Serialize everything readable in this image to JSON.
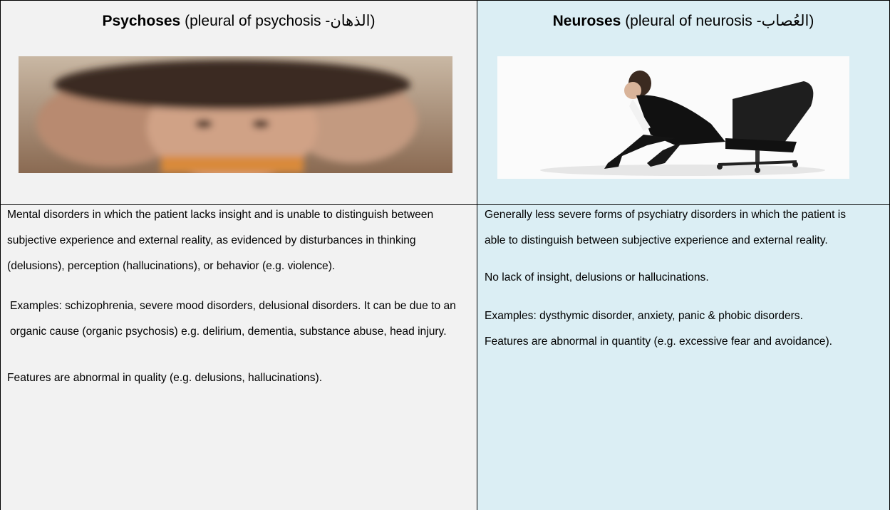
{
  "columns": [
    {
      "title": "Psychoses",
      "subtitle": "(pleural of psychosis -الذهان)",
      "paragraphs": [
        "Mental disorders in which the patient lacks insight and is unable to distinguish between subjective experience and external reality, as evidenced by disturbances in thinking (delusions), perception (hallucinations), or behavior (e.g. violence).",
        "Examples: schizophrenia, severe mood disorders,  delusional disorders. It can be due to an organic cause (organic psychosis) e.g. delirium, dementia, substance abuse, head injury.",
        "Features are abnormal in quality (e.g. delusions, hallucinations)."
      ]
    },
    {
      "title": "Neuroses",
      "subtitle": "(pleural of neurosis -العُصاب)",
      "paragraphs": [
        "Generally less severe forms of psychiatry disorders in which the patient is able to distinguish between subjective experience and external reality.",
        "No lack of insight, delusions or hallucinations.",
        "Examples: dysthymic disorder, anxiety, panic & phobic disorders.",
        "Features are abnormal in quantity (e.g. excessive fear and avoidance)."
      ]
    }
  ]
}
